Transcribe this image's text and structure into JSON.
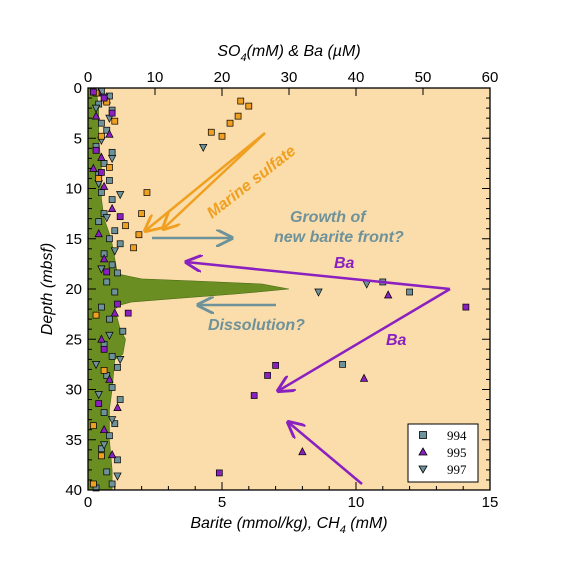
{
  "chart_data": {
    "type": "scatter",
    "title": "",
    "xlabel_bottom": "Barite (mmol/kg), CH",
    "xlabel_bottom_sub": "4",
    "xlabel_bottom_tail": " (mM)",
    "xlabel_top": "SO",
    "xlabel_top_sub": "4",
    "xlabel_top_tail": "(mM) & Ba (µM)",
    "ylabel": "Depth (mbsf)",
    "xlim_bottom": [
      0,
      15
    ],
    "xlim_top": [
      0,
      60
    ],
    "ylim": [
      40,
      0
    ],
    "xticks_bottom": [
      0,
      5,
      10,
      15
    ],
    "xticks_top": [
      0,
      10,
      20,
      30,
      40,
      50,
      60
    ],
    "yticks": [
      0,
      5,
      10,
      15,
      20,
      25,
      30,
      35,
      40
    ],
    "grid": false,
    "legend_position": "bottom-right",
    "colors": {
      "plot_background": "#fbdcab",
      "ch4_fill": "#6b8e23",
      "sulfate": "#f0a020",
      "barium": "#8a20c0",
      "front_arrow": "#6e929a",
      "site_994": "#6e929a",
      "site_995": "#8a20c0",
      "site_997": "#6e929a"
    },
    "legend": [
      {
        "label": "994",
        "marker": "square"
      },
      {
        "label": "995",
        "marker": "triangle-up"
      },
      {
        "label": "997",
        "marker": "triangle-down"
      }
    ],
    "annotations": {
      "marine_sulfate": "Marine sulfate",
      "growth_line1": "Growth of",
      "growth_line2": "new barite front?",
      "ba_upper": "Ba",
      "ba_lower": "Ba",
      "dissolution": "Dissolution?"
    },
    "ch4_profile": {
      "depth": [
        0,
        2,
        5,
        8,
        11,
        13,
        14.5,
        15.5,
        17,
        18.5,
        19,
        19.2,
        19.5,
        20,
        20.5,
        21,
        21.3,
        21.6,
        22,
        23,
        24,
        25,
        26.5,
        27,
        30,
        32,
        35,
        38,
        40
      ],
      "value": [
        0.3,
        0.4,
        0.4,
        0.5,
        0.5,
        0.6,
        0.8,
        0.9,
        1.0,
        1.1,
        2.0,
        4.0,
        6.5,
        7.5,
        5.5,
        3.0,
        1.6,
        1.2,
        1.0,
        1.1,
        1.2,
        1.4,
        1.3,
        1.0,
        0.9,
        0.8,
        0.8,
        0.9,
        0.9
      ]
    },
    "barite_994": {
      "marker": "square",
      "points": [
        [
          0.5,
          0.3
        ],
        [
          0.8,
          0.8
        ],
        [
          0.4,
          1.6
        ],
        [
          0.9,
          2.2
        ],
        [
          0.5,
          3.5
        ],
        [
          0.7,
          4.2
        ],
        [
          0.3,
          5.8
        ],
        [
          0.9,
          6.4
        ],
        [
          0.6,
          7.5
        ],
        [
          0.4,
          8.6
        ],
        [
          0.8,
          9.2
        ],
        [
          0.5,
          10.4
        ],
        [
          0.9,
          11.1
        ],
        [
          0.6,
          12.5
        ],
        [
          0.4,
          13.3
        ],
        [
          1.0,
          14.2
        ],
        [
          0.8,
          15.0
        ],
        [
          1.2,
          15.5
        ],
        [
          0.6,
          16.5
        ],
        [
          0.9,
          17.6
        ],
        [
          1.1,
          18.4
        ],
        [
          0.7,
          19.3
        ],
        [
          1.0,
          20.3
        ],
        [
          0.5,
          21.8
        ],
        [
          0.8,
          23.0
        ],
        [
          1.3,
          24.2
        ],
        [
          0.6,
          25.5
        ],
        [
          0.9,
          26.7
        ],
        [
          1.1,
          27.8
        ],
        [
          0.7,
          28.6
        ],
        [
          0.9,
          29.8
        ],
        [
          1.2,
          31.0
        ],
        [
          0.6,
          32.3
        ],
        [
          1.0,
          33.4
        ],
        [
          0.8,
          34.6
        ],
        [
          0.5,
          35.9
        ],
        [
          1.1,
          37.0
        ],
        [
          0.7,
          38.2
        ],
        [
          0.9,
          39.4
        ],
        [
          0.3,
          39.8
        ],
        [
          11.0,
          19.3
        ],
        [
          12.0,
          20.3
        ],
        [
          9.5,
          27.5
        ]
      ]
    },
    "barite_995": {
      "marker": "triangle-up",
      "points": [
        [
          0.4,
          0.5
        ],
        [
          0.7,
          1.2
        ],
        [
          0.3,
          2.8
        ],
        [
          0.8,
          4.6
        ],
        [
          0.5,
          6.9
        ],
        [
          0.2,
          8.0
        ],
        [
          0.6,
          9.8
        ],
        [
          0.9,
          12.0
        ],
        [
          0.4,
          14.5
        ],
        [
          0.6,
          17.0
        ],
        [
          1.0,
          22.4
        ],
        [
          0.5,
          25.0
        ],
        [
          0.8,
          29.0
        ],
        [
          1.1,
          31.8
        ],
        [
          0.6,
          34.0
        ],
        [
          0.9,
          36.5
        ],
        [
          10.3,
          28.9
        ],
        [
          8.0,
          36.2
        ],
        [
          11.2,
          20.6
        ]
      ]
    },
    "barite_997": {
      "marker": "triangle-down",
      "points": [
        [
          0.6,
          0.9
        ],
        [
          0.3,
          2.0
        ],
        [
          0.8,
          3.0
        ],
        [
          0.5,
          5.2
        ],
        [
          0.9,
          7.0
        ],
        [
          0.4,
          9.5
        ],
        [
          1.2,
          10.6
        ],
        [
          0.7,
          12.9
        ],
        [
          1.0,
          16.2
        ],
        [
          0.5,
          18.0
        ],
        [
          0.8,
          24.6
        ],
        [
          1.2,
          27.0
        ],
        [
          0.4,
          30.5
        ],
        [
          0.9,
          33.0
        ],
        [
          0.6,
          35.5
        ],
        [
          1.1,
          38.6
        ],
        [
          0.3,
          27.5
        ],
        [
          4.3,
          5.9
        ],
        [
          10.4,
          19.5
        ],
        [
          8.6,
          20.3
        ]
      ]
    },
    "sulfate_squares": {
      "marker": "square",
      "points": [
        [
          0.3,
          0.5
        ],
        [
          0.7,
          1.4
        ],
        [
          1.0,
          3.3
        ],
        [
          0.5,
          4.8
        ],
        [
          0.8,
          7.9
        ],
        [
          0.4,
          9.0
        ],
        [
          2.2,
          10.4
        ],
        [
          2.0,
          12.5
        ],
        [
          1.4,
          13.7
        ],
        [
          1.9,
          14.6
        ],
        [
          1.7,
          15.9
        ],
        [
          4.6,
          4.4
        ],
        [
          5.7,
          1.3
        ],
        [
          6.0,
          1.8
        ],
        [
          5.6,
          2.8
        ],
        [
          5.3,
          3.5
        ],
        [
          5.0,
          4.8
        ],
        [
          0.3,
          22.6
        ],
        [
          0.6,
          28.1
        ],
        [
          0.2,
          33.6
        ],
        [
          0.5,
          36.6
        ],
        [
          0.2,
          39.4
        ]
      ]
    },
    "ba_squares": {
      "marker": "square",
      "points": [
        [
          0.2,
          0.4
        ],
        [
          0.6,
          1.0
        ],
        [
          0.9,
          2.5
        ],
        [
          0.3,
          6.2
        ],
        [
          0.5,
          8.4
        ],
        [
          1.2,
          12.8
        ],
        [
          0.7,
          18.3
        ],
        [
          1.1,
          21.5
        ],
        [
          1.5,
          22.4
        ],
        [
          0.6,
          26.0
        ],
        [
          0.4,
          31.4
        ],
        [
          14.1,
          21.8
        ],
        [
          7.0,
          27.6
        ],
        [
          6.7,
          28.6
        ],
        [
          6.2,
          30.6
        ],
        [
          4.9,
          38.3
        ]
      ]
    }
  }
}
